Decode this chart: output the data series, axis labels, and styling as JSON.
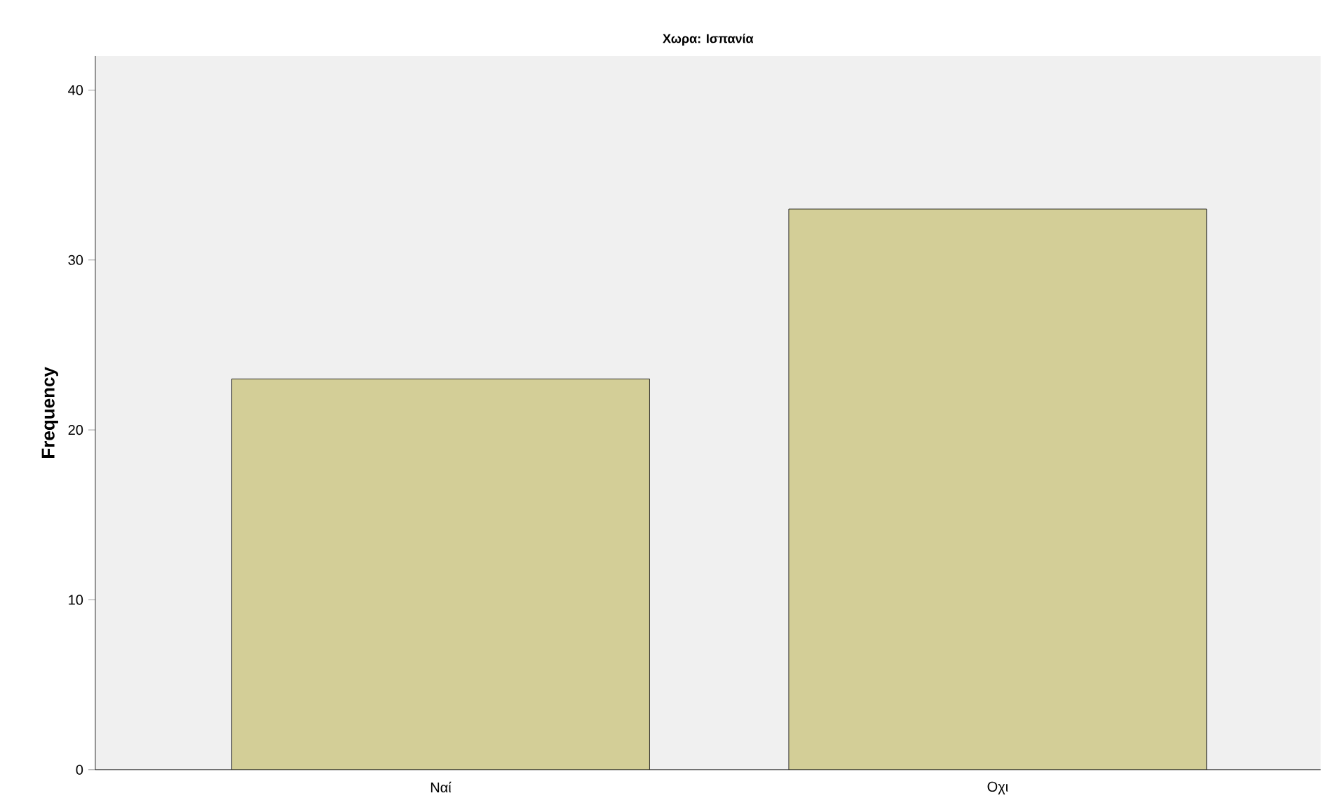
{
  "chart_data": {
    "type": "bar",
    "title": "Χωρα: Ισπανία",
    "ylabel": "Frequency",
    "categories": [
      "Ναί",
      "Οχι"
    ],
    "values": [
      23,
      33
    ],
    "color": "#d3ce97",
    "ylim": [
      0,
      42
    ],
    "yticks": [
      0,
      10,
      20,
      30,
      40
    ],
    "grid": false
  }
}
